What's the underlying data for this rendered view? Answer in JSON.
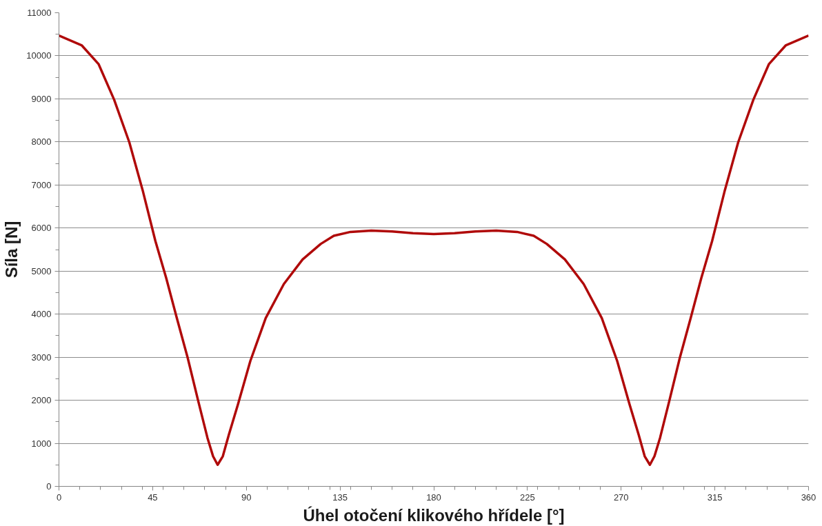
{
  "chart_data": {
    "type": "line",
    "xlabel": "Úhel otočení klikového hřídele [°]",
    "ylabel": "Síla [N]",
    "xlim": [
      0,
      360
    ],
    "ylim": [
      0,
      11000
    ],
    "xticks": [
      0,
      {
        "value": 10,
        "label": null
      },
      {
        "value": 20,
        "label": null
      },
      {
        "value": 30,
        "label": null
      },
      {
        "value": 40,
        "label": null
      },
      45,
      {
        "value": 50,
        "label": null
      },
      {
        "value": 60,
        "label": null
      },
      {
        "value": 70,
        "label": null
      },
      {
        "value": 80,
        "label": null
      },
      90,
      {
        "value": 100,
        "label": null
      },
      {
        "value": 110,
        "label": null
      },
      {
        "value": 120,
        "label": null
      },
      {
        "value": 130,
        "label": null
      },
      135,
      {
        "value": 140,
        "label": null
      },
      {
        "value": 150,
        "label": null
      },
      {
        "value": 160,
        "label": null
      },
      {
        "value": 170,
        "label": null
      },
      180,
      {
        "value": 190,
        "label": null
      },
      {
        "value": 200,
        "label": null
      },
      {
        "value": 210,
        "label": null
      },
      {
        "value": 220,
        "label": null
      },
      225,
      {
        "value": 230,
        "label": null
      },
      {
        "value": 240,
        "label": null
      },
      {
        "value": 250,
        "label": null
      },
      {
        "value": 260,
        "label": null
      },
      270,
      {
        "value": 280,
        "label": null
      },
      {
        "value": 290,
        "label": null
      },
      {
        "value": 300,
        "label": null
      },
      {
        "value": 310,
        "label": null
      },
      315,
      {
        "value": 320,
        "label": null
      },
      {
        "value": 330,
        "label": null
      },
      {
        "value": 340,
        "label": null
      },
      {
        "value": 350,
        "label": null
      },
      360
    ],
    "yticks": [
      0,
      {
        "value": 500,
        "label": null
      },
      1000,
      {
        "value": 1500,
        "label": null
      },
      2000,
      {
        "value": 2500,
        "label": null
      },
      3000,
      {
        "value": 3500,
        "label": null
      },
      4000,
      {
        "value": 4500,
        "label": null
      },
      5000,
      {
        "value": 5500,
        "label": null
      },
      6000,
      {
        "value": 6500,
        "label": null
      },
      7000,
      {
        "value": 7500,
        "label": null
      },
      8000,
      {
        "value": 8500,
        "label": null
      },
      9000,
      {
        "value": 9500,
        "label": null
      },
      10000,
      {
        "value": 10500,
        "label": null
      },
      11000
    ],
    "grid": "y",
    "marker": "none",
    "line_style": "solid",
    "series": [
      {
        "color": "#b00a0a",
        "x": [
          0,
          11,
          19,
          26.5,
          33.8,
          40.4,
          46.3,
          51.5,
          56.6,
          61.8,
          66.9,
          71.3,
          74,
          76.2,
          78.7,
          81.6,
          86,
          91.9,
          99.3,
          108,
          117,
          125.7,
          132,
          140,
          150,
          160,
          170,
          180,
          190,
          200,
          210,
          220,
          228,
          234.3,
          243,
          252,
          260.7,
          268.1,
          274,
          278.4,
          281.3,
          283.8,
          286,
          288.7,
          293.1,
          298.2,
          303.4,
          308.5,
          313.7,
          319.6,
          326.2,
          333.5,
          341,
          349,
          360
        ],
        "values": [
          10470,
          10240,
          9810,
          8980,
          7990,
          6840,
          5700,
          4840,
          3910,
          2990,
          1980,
          1130,
          700,
          500,
          700,
          1200,
          1910,
          2910,
          3910,
          4700,
          5270,
          5630,
          5820,
          5910,
          5940,
          5920,
          5880,
          5860,
          5880,
          5920,
          5940,
          5910,
          5820,
          5630,
          5270,
          4700,
          3910,
          2910,
          1910,
          1200,
          700,
          500,
          700,
          1130,
          1980,
          2990,
          3910,
          4840,
          5700,
          6840,
          7990,
          8980,
          9810,
          10240,
          10470
        ]
      }
    ]
  }
}
